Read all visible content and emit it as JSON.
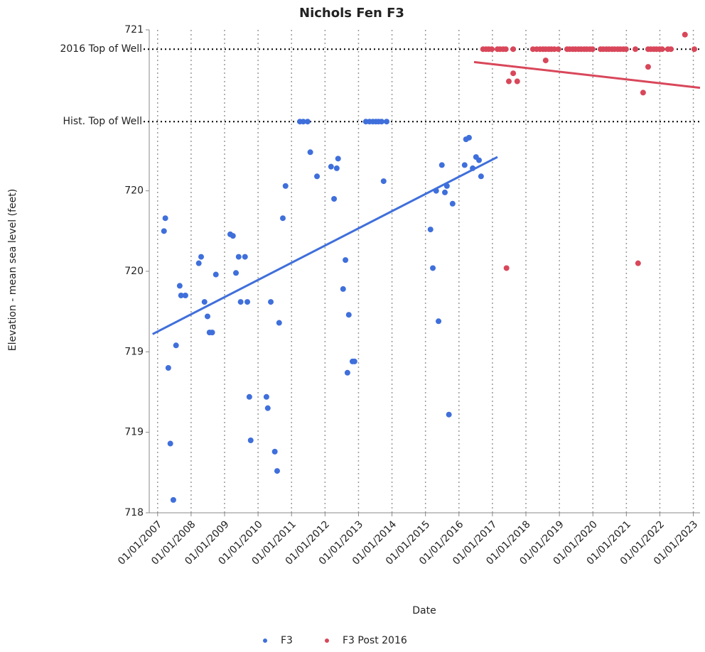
{
  "chart_data": {
    "type": "scatter",
    "title": "Nichols Fen F3",
    "x_label": "Date",
    "y_label": "Elevation - mean sea level (feet)",
    "xlim": [
      2006.75,
      2023.2
    ],
    "xticks": [
      {
        "value": 2007,
        "label": "01/01/2007"
      },
      {
        "value": 2008,
        "label": "01/01/2008"
      },
      {
        "value": 2009,
        "label": "01/01/2009"
      },
      {
        "value": 2010,
        "label": "01/01/2010"
      },
      {
        "value": 2011,
        "label": "01/01/2011"
      },
      {
        "value": 2012,
        "label": "01/01/2012"
      },
      {
        "value": 2013,
        "label": "01/01/2013"
      },
      {
        "value": 2014,
        "label": "01/01/2014"
      },
      {
        "value": 2015,
        "label": "01/01/2015"
      },
      {
        "value": 2016,
        "label": "01/01/2016"
      },
      {
        "value": 2017,
        "label": "01/01/2017"
      },
      {
        "value": 2018,
        "label": "01/01/2018"
      },
      {
        "value": 2019,
        "label": "01/01/2019"
      },
      {
        "value": 2020,
        "label": "01/01/2020"
      },
      {
        "value": 2021,
        "label": "01/01/2021"
      },
      {
        "value": 2022,
        "label": "01/01/2022"
      },
      {
        "value": 2023,
        "label": "01/01/2023"
      }
    ],
    "ylim": [
      718,
      721
    ],
    "yticks": [
      718,
      {
        "value": 718.5,
        "label": "719"
      },
      719,
      {
        "value": 719.5,
        "label": "720"
      },
      720,
      721
    ],
    "x_grid": true,
    "reference_lines": [
      {
        "label": "2016 Top of Well",
        "value": 720.88
      },
      {
        "label": "Hist. Top of Well",
        "value": 720.43
      }
    ],
    "series": [
      {
        "name": "F3",
        "color": "#3f6fdb",
        "x": [
          2007.19,
          2007.23,
          2007.32,
          2007.38,
          2007.47,
          2007.55,
          2007.66,
          2007.7,
          2007.83,
          2008.23,
          2008.3,
          2008.4,
          2008.49,
          2008.55,
          2008.63,
          2008.74,
          2009.17,
          2009.25,
          2009.34,
          2009.42,
          2009.48,
          2009.61,
          2009.68,
          2009.74,
          2009.78,
          2010.25,
          2010.29,
          2010.38,
          2010.5,
          2010.57,
          2010.63,
          2010.74,
          2010.82,
          2011.25,
          2011.35,
          2011.48,
          2011.56,
          2011.76,
          2012.18,
          2012.27,
          2012.35,
          2012.39,
          2012.54,
          2012.61,
          2012.67,
          2012.71,
          2012.82,
          2012.88,
          2013.22,
          2013.33,
          2013.43,
          2013.52,
          2013.6,
          2013.69,
          2013.75,
          2013.84,
          2015.15,
          2015.22,
          2015.32,
          2015.39,
          2015.49,
          2015.58,
          2015.64,
          2015.7,
          2015.81,
          2016.17,
          2016.21,
          2016.3,
          2016.41,
          2016.51,
          2016.6,
          2016.66
        ],
        "values": [
          719.75,
          719.83,
          718.9,
          718.43,
          718.08,
          719.04,
          719.41,
          719.35,
          719.35,
          719.55,
          719.59,
          719.31,
          719.22,
          719.12,
          719.12,
          719.48,
          719.73,
          719.72,
          719.49,
          719.59,
          719.31,
          719.59,
          719.31,
          718.72,
          718.45,
          718.72,
          718.65,
          719.31,
          718.38,
          718.26,
          719.18,
          719.83,
          720.03,
          720.43,
          720.43,
          720.43,
          720.24,
          720.09,
          720.15,
          719.95,
          720.14,
          720.2,
          719.39,
          719.57,
          718.87,
          719.23,
          718.94,
          718.94,
          720.43,
          720.43,
          720.43,
          720.43,
          720.43,
          720.43,
          720.06,
          720.43,
          719.76,
          719.52,
          720.0,
          719.19,
          720.16,
          719.99,
          720.03,
          718.61,
          719.92,
          720.16,
          720.32,
          720.33,
          720.14,
          720.21,
          720.19,
          720.09
        ],
        "trend": {
          "x": [
            2006.85,
            2017.15
          ],
          "values": [
            719.11,
            720.21
          ]
        }
      },
      {
        "name": "F3 Post 2016",
        "color": "#d9475a",
        "x": [
          2016.72,
          2016.81,
          2016.89,
          2016.98,
          2017.15,
          2017.23,
          2017.32,
          2017.4,
          2017.62,
          2018.21,
          2018.32,
          2018.42,
          2018.51,
          2018.59,
          2018.68,
          2018.76,
          2018.85,
          2018.97,
          2019.23,
          2019.31,
          2019.4,
          2019.48,
          2019.57,
          2019.65,
          2019.74,
          2019.82,
          2019.91,
          2019.99,
          2020.23,
          2020.31,
          2020.4,
          2020.48,
          2020.57,
          2020.65,
          2020.74,
          2020.82,
          2020.91,
          2020.99,
          2021.27,
          2021.65,
          2021.73,
          2021.82,
          2021.9,
          2021.99,
          2022.07,
          2022.24,
          2022.33,
          2023.03,
          2017.42,
          2017.49,
          2017.62,
          2017.74,
          2018.59,
          2021.35,
          2021.5,
          2021.65,
          2022.75
        ],
        "values": [
          720.88,
          720.88,
          720.88,
          720.88,
          720.88,
          720.88,
          720.88,
          720.88,
          720.88,
          720.88,
          720.88,
          720.88,
          720.88,
          720.88,
          720.88,
          720.88,
          720.88,
          720.88,
          720.88,
          720.88,
          720.88,
          720.88,
          720.88,
          720.88,
          720.88,
          720.88,
          720.88,
          720.88,
          720.88,
          720.88,
          720.88,
          720.88,
          720.88,
          720.88,
          720.88,
          720.88,
          720.88,
          720.88,
          720.88,
          720.88,
          720.88,
          720.88,
          720.88,
          720.88,
          720.88,
          720.88,
          720.88,
          720.88,
          719.52,
          720.68,
          720.73,
          720.68,
          720.81,
          719.55,
          720.61,
          720.77,
          720.97
        ],
        "trend": {
          "x": [
            2016.45,
            2023.2
          ],
          "values": [
            720.8,
            720.64
          ]
        }
      }
    ]
  }
}
